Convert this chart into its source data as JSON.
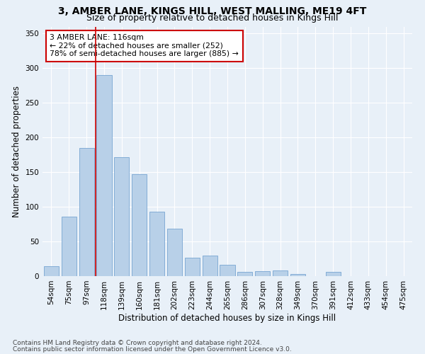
{
  "title": "3, AMBER LANE, KINGS HILL, WEST MALLING, ME19 4FT",
  "subtitle": "Size of property relative to detached houses in Kings Hill",
  "xlabel": "Distribution of detached houses by size in Kings Hill",
  "ylabel": "Number of detached properties",
  "categories": [
    "54sqm",
    "75sqm",
    "97sqm",
    "118sqm",
    "139sqm",
    "160sqm",
    "181sqm",
    "202sqm",
    "223sqm",
    "244sqm",
    "265sqm",
    "286sqm",
    "307sqm",
    "328sqm",
    "349sqm",
    "370sqm",
    "391sqm",
    "412sqm",
    "433sqm",
    "454sqm",
    "475sqm"
  ],
  "values": [
    14,
    86,
    185,
    290,
    172,
    147,
    93,
    68,
    27,
    30,
    16,
    6,
    7,
    8,
    3,
    0,
    6,
    0,
    0,
    0,
    0
  ],
  "bar_color": "#b8d0e8",
  "bar_edgecolor": "#6699cc",
  "bg_color": "#e8f0f8",
  "grid_color": "#ffffff",
  "vline_color": "#cc0000",
  "annotation_text": "3 AMBER LANE: 116sqm\n← 22% of detached houses are smaller (252)\n78% of semi-detached houses are larger (885) →",
  "annotation_box_facecolor": "#ffffff",
  "annotation_box_edgecolor": "#cc0000",
  "footnote1": "Contains HM Land Registry data © Crown copyright and database right 2024.",
  "footnote2": "Contains public sector information licensed under the Open Government Licence v3.0.",
  "ylim": [
    0,
    360
  ],
  "yticks": [
    0,
    50,
    100,
    150,
    200,
    250,
    300,
    350
  ],
  "title_fontsize": 10,
  "subtitle_fontsize": 9,
  "label_fontsize": 8.5,
  "tick_fontsize": 7.5,
  "annot_fontsize": 7.8,
  "footnote_fontsize": 6.5
}
